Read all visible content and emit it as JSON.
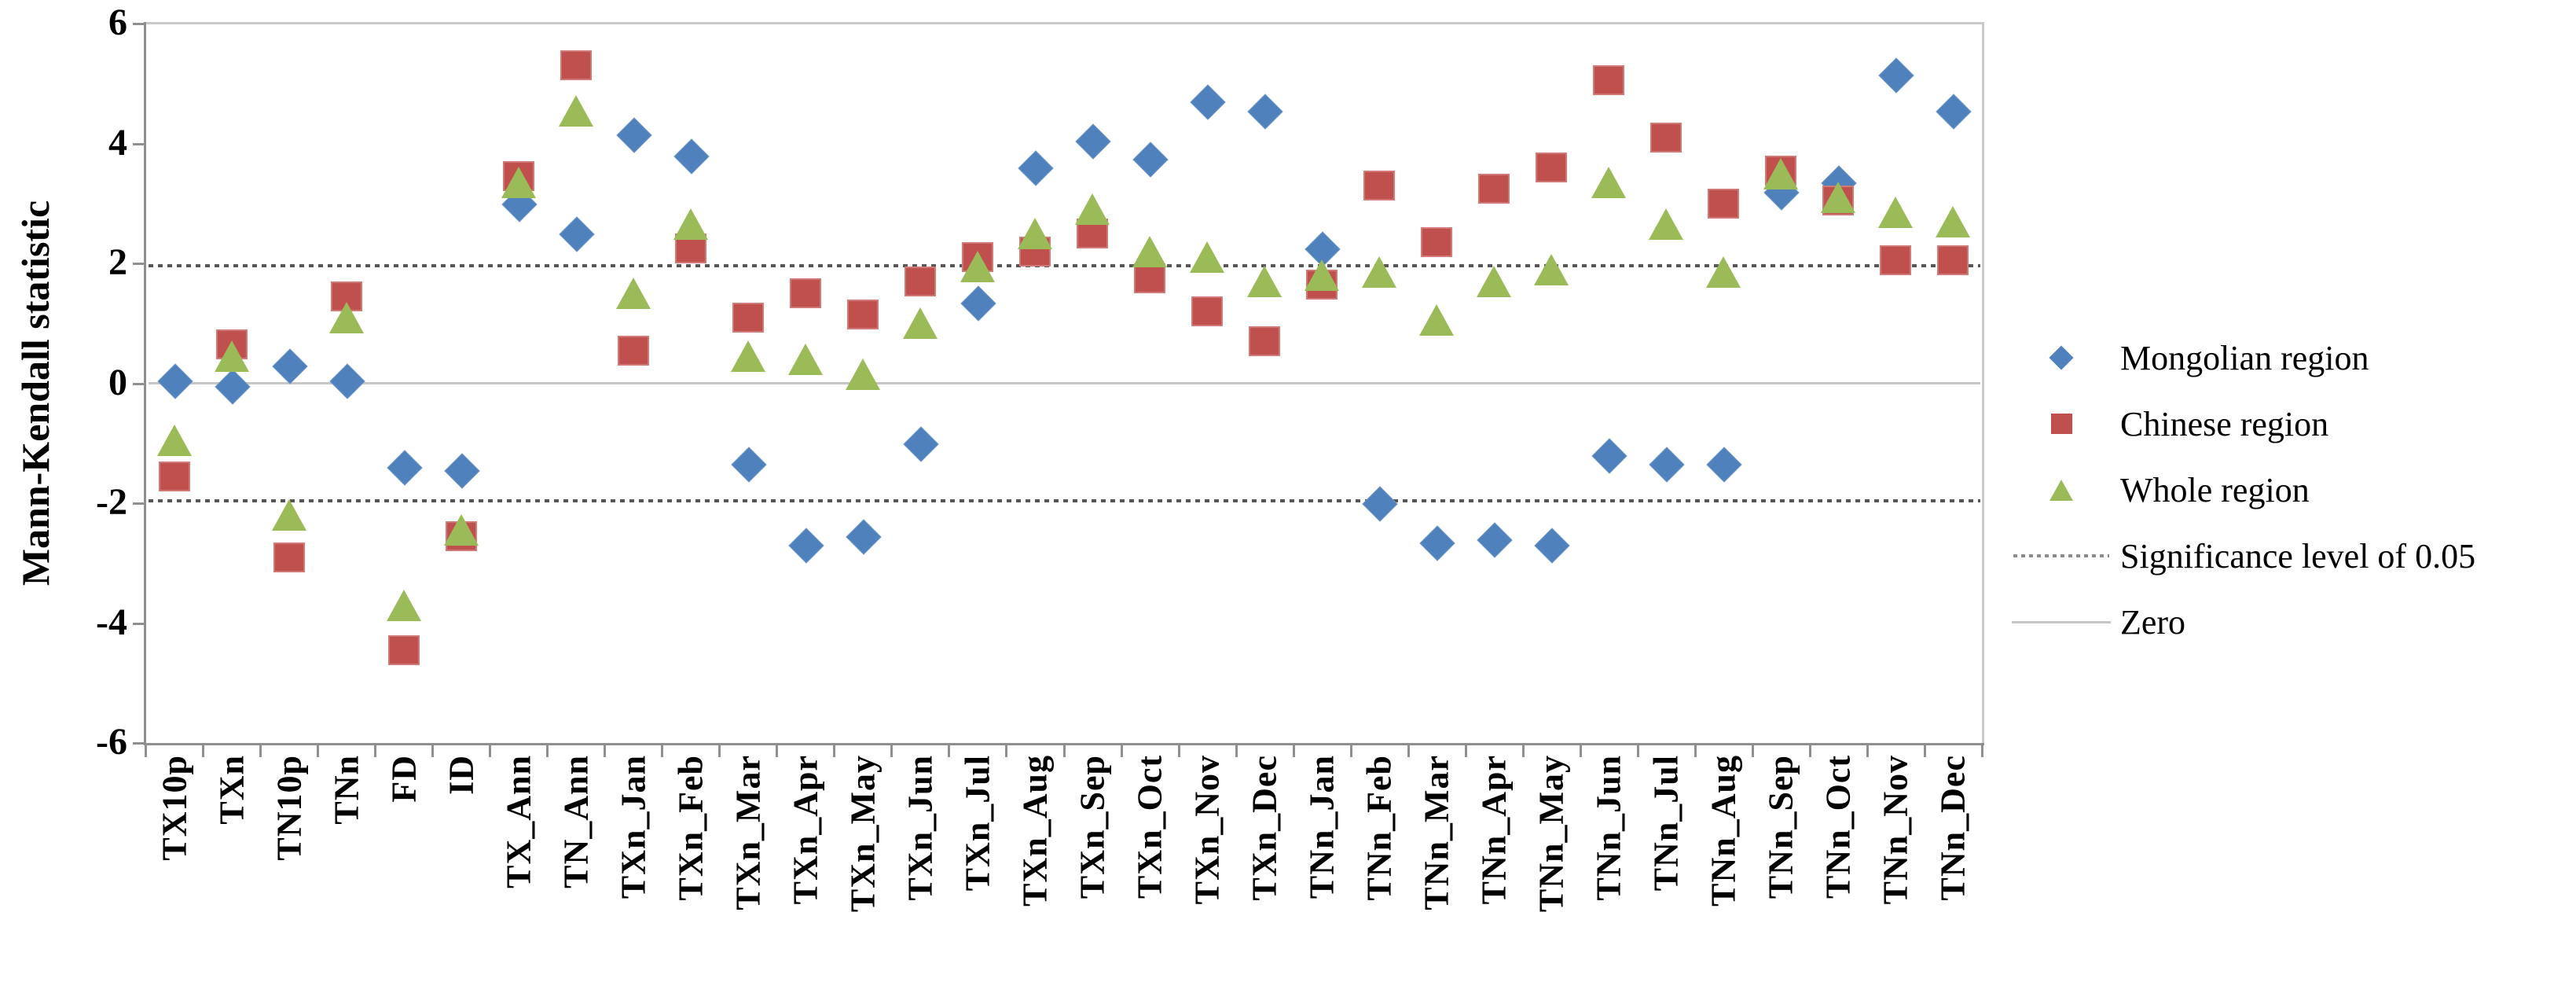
{
  "chart_data": {
    "type": "scatter",
    "title": "",
    "xlabel": "",
    "ylabel": "Mann-Kendall statistic",
    "ylim": [
      -6,
      6
    ],
    "yticks": [
      6,
      4,
      2,
      0,
      -2,
      -4,
      -6
    ],
    "grid": false,
    "legend_position": "right",
    "categories": [
      "TX10p",
      "TXn",
      "TN10p",
      "TNn",
      "FD",
      "ID",
      "TX_Ann",
      "TN_Ann",
      "TXn_Jan",
      "TXn_Feb",
      "TXn_Mar",
      "TXn_Apr",
      "TXn_May",
      "TXn_Jun",
      "TXn_Jul",
      "TXn_Aug",
      "TXn_Sep",
      "TXn_Oct",
      "TXn_Nov",
      "TXn_Dec",
      "TNn_Jan",
      "TNn_Feb",
      "TNn_Mar",
      "TNn_Apr",
      "TNn_May",
      "TNn_Jun",
      "TNn_Jul",
      "TNn_Aug",
      "TNn_Sep",
      "TNn_Oct",
      "TNn_Nov",
      "TNn_Dec"
    ],
    "series": [
      {
        "name": "Mongolian region",
        "marker": "diamond",
        "color": "#4F81BD",
        "values": [
          0.05,
          -0.05,
          0.3,
          0.05,
          -1.4,
          -1.45,
          3.0,
          2.5,
          4.15,
          3.8,
          -1.35,
          -2.7,
          -2.55,
          -1.0,
          1.35,
          3.6,
          4.05,
          3.75,
          4.7,
          4.55,
          2.25,
          -2.0,
          -2.65,
          -2.6,
          -2.7,
          -1.2,
          -1.35,
          -1.35,
          3.2,
          3.35,
          5.15,
          4.55
        ]
      },
      {
        "name": "Chinese region",
        "marker": "square",
        "color": "#C0504D",
        "values": [
          -1.55,
          0.65,
          -2.9,
          1.45,
          -4.45,
          -2.55,
          3.45,
          5.3,
          0.55,
          2.25,
          1.1,
          1.5,
          1.15,
          1.7,
          2.1,
          2.2,
          2.5,
          1.75,
          1.2,
          0.7,
          1.65,
          3.3,
          2.35,
          3.25,
          3.6,
          5.05,
          4.1,
          3.0,
          3.55,
          3.05,
          2.05,
          2.05
        ]
      },
      {
        "name": "Whole region",
        "marker": "triangle",
        "color": "#9BBB59",
        "values": [
          -0.95,
          0.45,
          -2.2,
          1.1,
          -3.7,
          -2.45,
          3.35,
          4.55,
          1.5,
          2.65,
          0.45,
          0.4,
          0.15,
          1.0,
          1.95,
          2.5,
          2.9,
          2.2,
          2.1,
          1.7,
          1.8,
          1.85,
          1.05,
          1.7,
          1.9,
          3.35,
          2.65,
          1.85,
          3.5,
          3.1,
          2.85,
          2.7
        ]
      }
    ],
    "reference_lines": [
      {
        "name": "Significance level of 0.05",
        "style": "dotted",
        "values": [
          1.96,
          -1.96
        ],
        "color": "#575757"
      },
      {
        "name": "Zero",
        "style": "solid",
        "values": [
          0
        ],
        "color": "#c6c6c6"
      }
    ],
    "colors": {
      "axis": "#8f8f8f",
      "plot_border": "#c9c9c9",
      "text": "#000000"
    }
  }
}
